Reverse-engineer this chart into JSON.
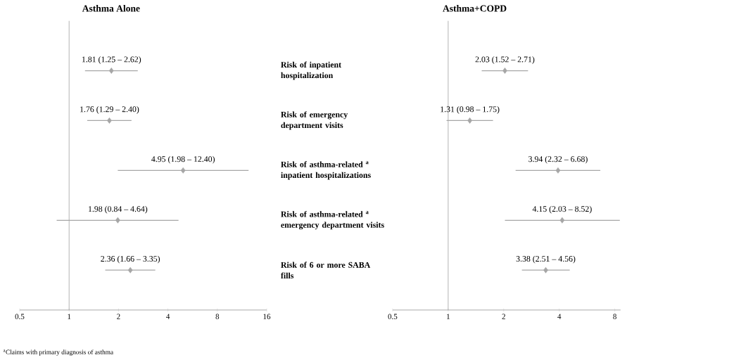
{
  "chart_data": [
    {
      "type": "scatter",
      "orientation": "horizontal",
      "title": "Asthma Alone",
      "categories": [
        "Risk of inpatient hospitalization",
        "Risk of emergency department visits",
        "Risk of asthma-related $^{a}$ inpatient hospitalizations",
        "Risk of asthma-related $^{a}$ emergency department visits",
        "Risk of 6 or more SABA fills"
      ],
      "values": [
        1.81,
        1.76,
        4.95,
        1.98,
        2.36
      ],
      "errors": [
        [
          1.25,
          2.62
        ],
        [
          1.29,
          2.4
        ],
        [
          1.98,
          12.4
        ],
        [
          0.84,
          4.64
        ],
        [
          1.66,
          3.35
        ]
      ],
      "value_labels": [
        "1.81 (1.25 – 2.62)",
        "1.76 (1.29 – 2.40)",
        "4.95 (1.98 – 12.40)",
        "1.98 (0.84 – 4.64)",
        "2.36 (1.66 – 3.35)"
      ],
      "color": "#a6a6a6",
      "marker": "diamond",
      "log": "x",
      "xlim": [
        0.5,
        16
      ],
      "xticks": [
        0.5,
        1,
        2,
        4,
        8,
        16
      ],
      "ref_lines": [
        {
          "axis": "x",
          "value": 1,
          "color": "#a6a6a6"
        }
      ],
      "annotations": [
        "$^{a}$Claims with primary diagnosis of asthma"
      ]
    },
    {
      "type": "scatter",
      "orientation": "horizontal",
      "title": "Asthma+COPD",
      "categories": [
        null,
        null,
        null,
        null,
        null
      ],
      "values": [
        2.03,
        1.31,
        3.94,
        4.15,
        3.38
      ],
      "errors": [
        [
          1.52,
          2.71
        ],
        [
          0.98,
          1.75
        ],
        [
          2.32,
          6.68
        ],
        [
          2.03,
          8.52
        ],
        [
          2.51,
          4.56
        ]
      ],
      "value_labels": [
        "2.03 (1.52 – 2.71)",
        "1.31 (0.98 – 1.75)",
        "3.94 (2.32 – 6.68)",
        "4.15 (2.03 – 8.52)",
        "3.38 (2.51 – 4.56)"
      ],
      "color": "#a6a6a6",
      "marker": "diamond",
      "log": "x",
      "xlim": [
        0.5,
        8.6
      ],
      "xticks": [
        0.5,
        1,
        2,
        4,
        8
      ],
      "ref_lines": [
        {
          "axis": "x",
          "value": 1,
          "color": "#a6a6a6"
        }
      ]
    }
  ]
}
